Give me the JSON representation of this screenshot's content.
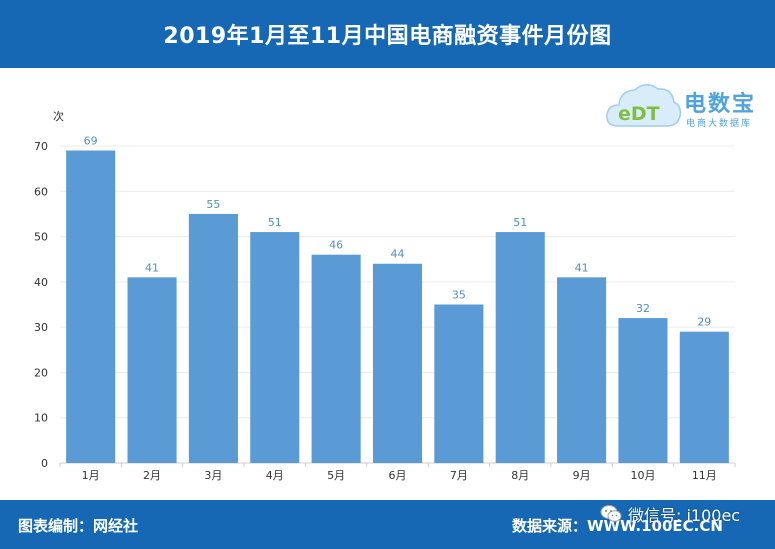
{
  "header": {
    "title": "2019年1月至11月中国电商融资事件月份图"
  },
  "logo": {
    "mark_text": "eDT",
    "name": "电数宝",
    "subtitle": "电商大数据库"
  },
  "footer": {
    "left_text": "图表编制：网经社",
    "right_text": "数据来源：WWW.100EC.CN"
  },
  "watermark": {
    "text": "微信号: i100ec",
    "icon": "wechat-icon"
  },
  "colors": {
    "bar": "#5b9bd5",
    "header": "#1668b4",
    "label": "#4f8fc9"
  },
  "chart_data": {
    "type": "bar",
    "title": "2019年1月至11月中国电商融资事件月份图",
    "ylabel": "次",
    "xlabel": "",
    "categories": [
      "1月",
      "2月",
      "3月",
      "4月",
      "5月",
      "6月",
      "7月",
      "8月",
      "9月",
      "10月",
      "11月"
    ],
    "values": [
      69,
      41,
      55,
      51,
      46,
      44,
      35,
      51,
      41,
      32,
      29
    ],
    "ylim": [
      0,
      70
    ],
    "yticks": [
      0,
      10,
      20,
      30,
      40,
      50,
      60,
      70
    ],
    "grid": true,
    "legend": "none"
  }
}
